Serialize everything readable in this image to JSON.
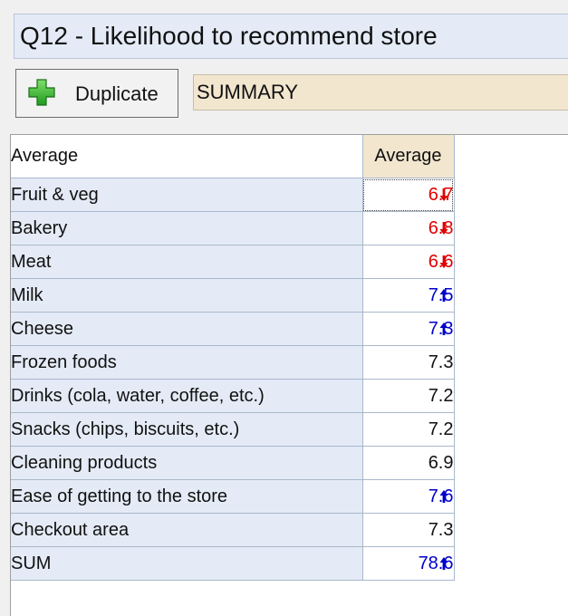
{
  "question_title": "Q12 - Likelihood to recommend store",
  "duplicate_button": {
    "label": "Duplicate",
    "icon": "plus-icon"
  },
  "summary_field": {
    "value": "SUMMARY"
  },
  "table": {
    "row_header_caption": "Average",
    "column_header": "Average",
    "rows": [
      {
        "label": "Fruit & veg",
        "value": "6.7",
        "trend": "down",
        "color": "#e00000"
      },
      {
        "label": "Bakery",
        "value": "6.8",
        "trend": "down",
        "color": "#e00000"
      },
      {
        "label": "Meat",
        "value": "6.6",
        "trend": "down",
        "color": "#e00000"
      },
      {
        "label": "Milk",
        "value": "7.5",
        "trend": "up",
        "color": "#0000cc"
      },
      {
        "label": "Cheese",
        "value": "7.3",
        "trend": "up",
        "color": "#0000cc"
      },
      {
        "label": "Frozen foods",
        "value": "7.3",
        "trend": "none",
        "color": "#111111"
      },
      {
        "label": "Drinks (cola, water, coffee, etc.)",
        "value": "7.2",
        "trend": "none",
        "color": "#111111"
      },
      {
        "label": "Snacks (chips, biscuits, etc.)",
        "value": "7.2",
        "trend": "none",
        "color": "#111111"
      },
      {
        "label": "Cleaning products",
        "value": "6.9",
        "trend": "none",
        "color": "#111111"
      },
      {
        "label": "Ease of getting to the store",
        "value": "7.6",
        "trend": "up",
        "color": "#0000cc"
      },
      {
        "label": "Checkout area",
        "value": "7.3",
        "trend": "none",
        "color": "#111111"
      },
      {
        "label": "SUM",
        "value": "78.6",
        "trend": "up",
        "color": "#0000cc"
      }
    ]
  },
  "colors": {
    "row_header_bg": "#e4ebf6",
    "column_header_bg": "#f2e6cf",
    "significance_down": "#e00000",
    "significance_up": "#0000cc"
  }
}
